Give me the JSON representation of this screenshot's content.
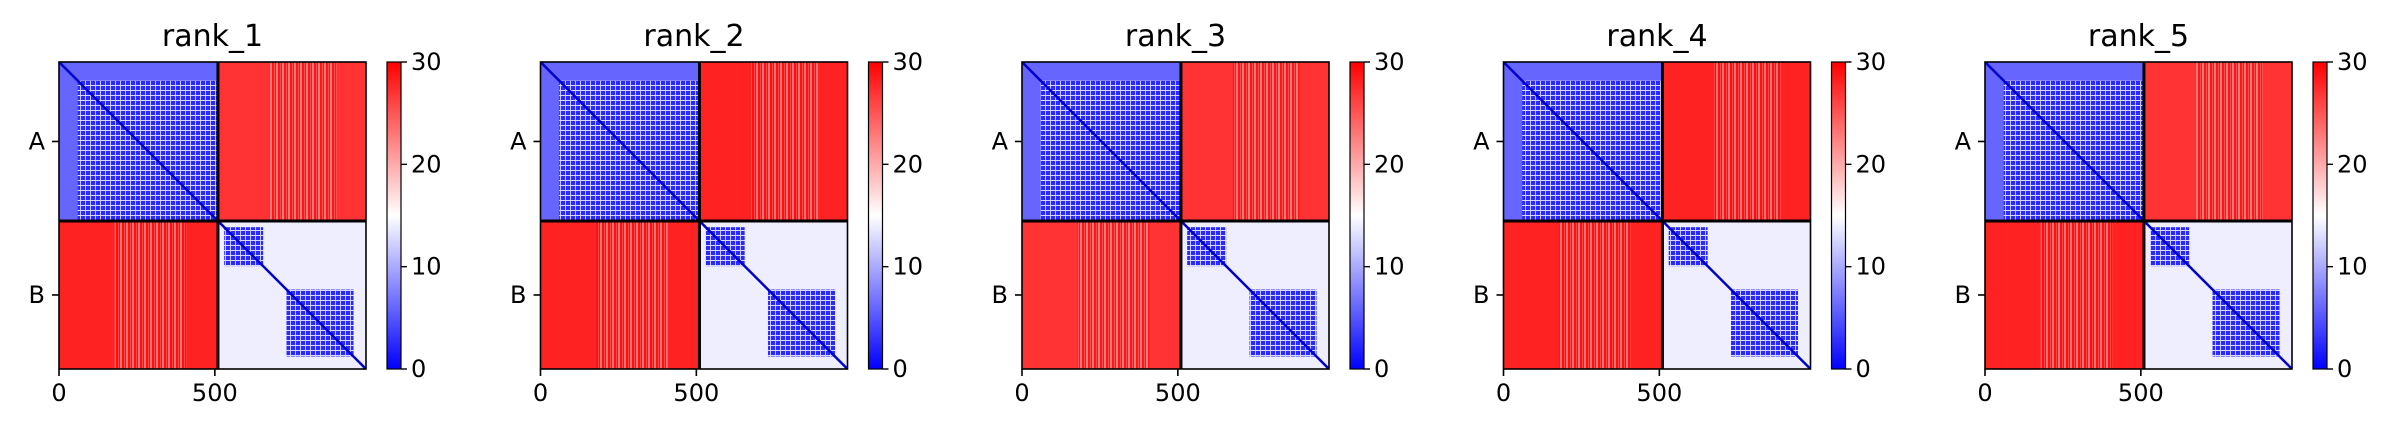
{
  "chart_data": [
    {
      "type": "heatmap",
      "title": "rank_1",
      "xlabel": "",
      "ylabel": "",
      "xticks": [
        "0",
        "500"
      ],
      "ytick_labels": [
        "A",
        "B"
      ],
      "chains": [
        {
          "name": "A",
          "start": 0,
          "end": 510
        },
        {
          "name": "B",
          "start": 510,
          "end": 985
        }
      ],
      "xlim": [
        0,
        985
      ],
      "colorbar": {
        "min": 0,
        "max": 30,
        "ticks": [
          "0",
          "10",
          "20",
          "30"
        ],
        "colormap": "bwr"
      },
      "blocks": [
        {
          "rows": "A",
          "cols": "A",
          "mean_value": 6
        },
        {
          "rows": "A",
          "cols": "B",
          "mean_value": 27
        },
        {
          "rows": "B",
          "cols": "A",
          "mean_value": 28
        },
        {
          "rows": "B",
          "cols": "B",
          "mean_value": 14
        }
      ],
      "confident_domains": [
        {
          "start": 60,
          "end": 510
        },
        {
          "start": 530,
          "end": 655
        },
        {
          "start": 730,
          "end": 945
        }
      ]
    },
    {
      "type": "heatmap",
      "title": "rank_2",
      "xlabel": "",
      "ylabel": "",
      "xticks": [
        "0",
        "500"
      ],
      "ytick_labels": [
        "A",
        "B"
      ],
      "chains": [
        {
          "name": "A",
          "start": 0,
          "end": 510
        },
        {
          "name": "B",
          "start": 510,
          "end": 985
        }
      ],
      "xlim": [
        0,
        985
      ],
      "colorbar": {
        "min": 0,
        "max": 30,
        "ticks": [
          "0",
          "10",
          "20",
          "30"
        ],
        "colormap": "bwr"
      },
      "blocks": [
        {
          "rows": "A",
          "cols": "A",
          "mean_value": 6
        },
        {
          "rows": "A",
          "cols": "B",
          "mean_value": 28
        },
        {
          "rows": "B",
          "cols": "A",
          "mean_value": 28
        },
        {
          "rows": "B",
          "cols": "B",
          "mean_value": 14
        }
      ],
      "confident_domains": [
        {
          "start": 60,
          "end": 510
        },
        {
          "start": 530,
          "end": 655
        },
        {
          "start": 730,
          "end": 945
        }
      ]
    },
    {
      "type": "heatmap",
      "title": "rank_3",
      "xlabel": "",
      "ylabel": "",
      "xticks": [
        "0",
        "500"
      ],
      "ytick_labels": [
        "A",
        "B"
      ],
      "chains": [
        {
          "name": "A",
          "start": 0,
          "end": 510
        },
        {
          "name": "B",
          "start": 510,
          "end": 985
        }
      ],
      "xlim": [
        0,
        985
      ],
      "colorbar": {
        "min": 0,
        "max": 30,
        "ticks": [
          "0",
          "10",
          "20",
          "30"
        ],
        "colormap": "bwr"
      },
      "blocks": [
        {
          "rows": "A",
          "cols": "A",
          "mean_value": 6
        },
        {
          "rows": "A",
          "cols": "B",
          "mean_value": 27
        },
        {
          "rows": "B",
          "cols": "A",
          "mean_value": 27
        },
        {
          "rows": "B",
          "cols": "B",
          "mean_value": 14
        }
      ],
      "confident_domains": [
        {
          "start": 60,
          "end": 510
        },
        {
          "start": 530,
          "end": 655
        },
        {
          "start": 730,
          "end": 945
        }
      ]
    },
    {
      "type": "heatmap",
      "title": "rank_4",
      "xlabel": "",
      "ylabel": "",
      "xticks": [
        "0",
        "500"
      ],
      "ytick_labels": [
        "A",
        "B"
      ],
      "chains": [
        {
          "name": "A",
          "start": 0,
          "end": 510
        },
        {
          "name": "B",
          "start": 510,
          "end": 985
        }
      ],
      "xlim": [
        0,
        985
      ],
      "colorbar": {
        "min": 0,
        "max": 30,
        "ticks": [
          "0",
          "10",
          "20",
          "30"
        ],
        "colormap": "bwr"
      },
      "blocks": [
        {
          "rows": "A",
          "cols": "A",
          "mean_value": 6
        },
        {
          "rows": "A",
          "cols": "B",
          "mean_value": 28
        },
        {
          "rows": "B",
          "cols": "A",
          "mean_value": 28
        },
        {
          "rows": "B",
          "cols": "B",
          "mean_value": 14
        }
      ],
      "confident_domains": [
        {
          "start": 60,
          "end": 510
        },
        {
          "start": 530,
          "end": 655
        },
        {
          "start": 730,
          "end": 945
        }
      ]
    },
    {
      "type": "heatmap",
      "title": "rank_5",
      "xlabel": "",
      "ylabel": "",
      "xticks": [
        "0",
        "500"
      ],
      "ytick_labels": [
        "A",
        "B"
      ],
      "chains": [
        {
          "name": "A",
          "start": 0,
          "end": 510
        },
        {
          "name": "B",
          "start": 510,
          "end": 985
        }
      ],
      "xlim": [
        0,
        985
      ],
      "colorbar": {
        "min": 0,
        "max": 30,
        "ticks": [
          "0",
          "10",
          "20",
          "30"
        ],
        "colormap": "bwr"
      },
      "blocks": [
        {
          "rows": "A",
          "cols": "A",
          "mean_value": 6
        },
        {
          "rows": "A",
          "cols": "B",
          "mean_value": 27
        },
        {
          "rows": "B",
          "cols": "A",
          "mean_value": 28
        },
        {
          "rows": "B",
          "cols": "B",
          "mean_value": 14
        }
      ],
      "confident_domains": [
        {
          "start": 60,
          "end": 510
        },
        {
          "start": 530,
          "end": 655
        },
        {
          "start": 730,
          "end": 945
        }
      ]
    }
  ],
  "colors": {
    "low": "#0000ff",
    "mid": "#ffffff",
    "high": "#ff0000",
    "divider": "#000000"
  }
}
